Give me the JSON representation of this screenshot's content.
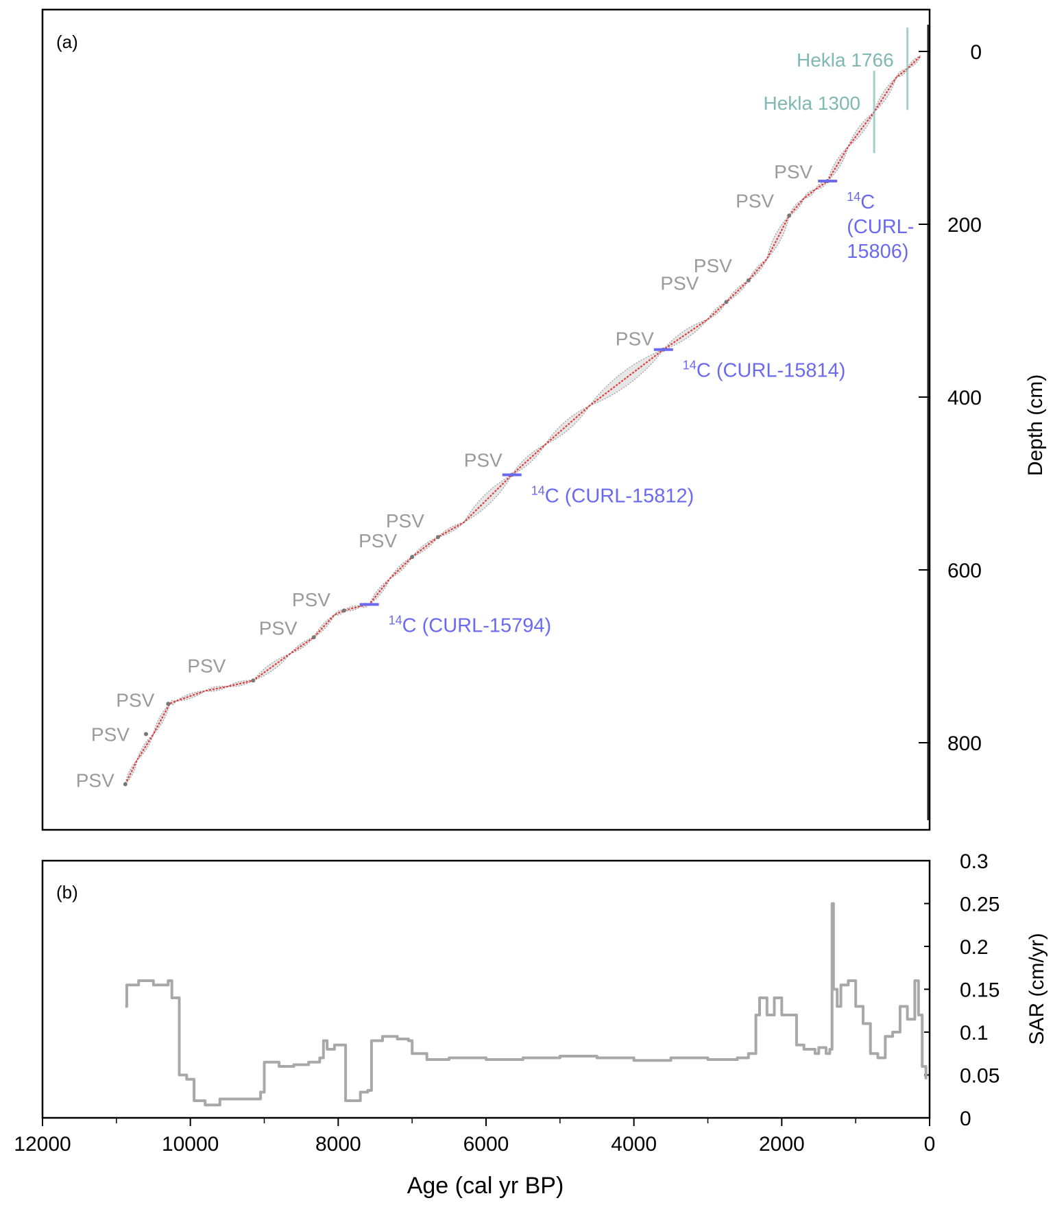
{
  "colors": {
    "frame": "#000000",
    "age_model_line": "#e03a3a",
    "uncertainty_envelope": "#c8c8c8",
    "psv_label": "#9a9a9a",
    "c14_label": "#6a6af0",
    "tephra_label": "#7fb8b2",
    "sar_line": "#a8a8a8"
  },
  "chart_data": [
    {
      "panel_label": "(a)",
      "type": "line",
      "xlabel": "",
      "ylabel": "Depth (cm)",
      "xlim": [
        12000,
        0
      ],
      "ylim": [
        0,
        900
      ],
      "y_inverted": true,
      "y_axis_side": "right",
      "yticks": [
        "0",
        "200",
        "400",
        "600",
        "800"
      ],
      "series": [
        {
          "x": [
            10880,
            10720,
            10500,
            10280,
            10200,
            9800,
            9500,
            9150,
            8650,
            8330,
            8050,
            7920,
            7700,
            7580,
            7300,
            7000,
            6650,
            6300,
            5650,
            5200,
            4600,
            3600,
            3000,
            2750,
            2450,
            2200,
            1900,
            1700,
            1550,
            1380,
            1100,
            750,
            450,
            300,
            120
          ],
          "y": [
            848,
            820,
            790,
            755,
            752,
            740,
            735,
            728,
            697,
            678,
            652,
            647,
            642,
            640,
            610,
            585,
            562,
            545,
            490,
            455,
            410,
            345,
            310,
            290,
            265,
            240,
            190,
            170,
            160,
            150,
            110,
            70,
            30,
            20,
            5
          ]
        }
      ],
      "annotations": {
        "psv": [
          {
            "text": "PSV",
            "age": 10880,
            "depth": 848
          },
          {
            "text": "PSV",
            "age": 10600,
            "depth": 790
          },
          {
            "text": "PSV",
            "age": 10300,
            "depth": 755
          },
          {
            "text": "PSV",
            "age": 9150,
            "depth": 728
          },
          {
            "text": "PSV",
            "age": 8330,
            "depth": 678
          },
          {
            "text": "PSV",
            "age": 7920,
            "depth": 647
          },
          {
            "text": "PSV",
            "age": 7000,
            "depth": 585
          },
          {
            "text": "PSV",
            "age": 6650,
            "depth": 562
          },
          {
            "text": "PSV",
            "age": 5650,
            "depth": 490
          },
          {
            "text": "PSV",
            "age": 3600,
            "depth": 345
          },
          {
            "text": "PSV",
            "age": 2750,
            "depth": 290
          },
          {
            "text": "PSV",
            "age": 2450,
            "depth": 265
          },
          {
            "text": "PSV",
            "age": 1900,
            "depth": 190
          },
          {
            "text": "PSV",
            "age": 1380,
            "depth": 150
          }
        ],
        "c14": [
          {
            "sup": "14",
            "text": "C (CURL-15794)",
            "age": 7580,
            "depth": 640
          },
          {
            "sup": "14",
            "text": "C (CURL-15812)",
            "age": 5650,
            "depth": 490
          },
          {
            "sup": "14",
            "text": "C (CURL-15814)",
            "age": 3600,
            "depth": 345
          },
          {
            "sup": "14",
            "lines": [
              "C",
              "(CURL-",
              "15806)"
            ],
            "age": 1380,
            "depth": 150
          }
        ],
        "tephra": [
          {
            "text": "Hekla 1766",
            "age": 300,
            "depth": 20
          },
          {
            "text": "Hekla 1300",
            "age": 750,
            "depth": 70
          }
        ]
      }
    },
    {
      "panel_label": "(b)",
      "type": "line",
      "xlabel": "Age (cal yr BP)",
      "ylabel": "SAR (cm/yr)",
      "xlim": [
        12000,
        0
      ],
      "ylim": [
        0,
        0.3
      ],
      "y_axis_side": "right",
      "xticks": [
        "12000",
        "10000",
        "8000",
        "6000",
        "4000",
        "2000",
        "0"
      ],
      "yticks": [
        "0",
        "0.05",
        "0.1",
        "0.15",
        "0.2",
        "0.25",
        "0.3"
      ],
      "series": [
        {
          "x": [
            10880,
            10860,
            10700,
            10500,
            10300,
            10250,
            10150,
            10050,
            9950,
            9800,
            9600,
            9400,
            9200,
            9050,
            9000,
            8800,
            8600,
            8400,
            8250,
            8200,
            8150,
            8050,
            7950,
            7900,
            7750,
            7700,
            7600,
            7550,
            7400,
            7200,
            7050,
            7000,
            6800,
            6500,
            6000,
            5500,
            5000,
            4500,
            4000,
            3500,
            3000,
            2600,
            2450,
            2350,
            2300,
            2200,
            2100,
            2000,
            1900,
            1800,
            1700,
            1550,
            1500,
            1400,
            1350,
            1320,
            1300,
            1250,
            1200,
            1100,
            1000,
            900,
            800,
            700,
            600,
            500,
            400,
            300,
            200,
            150,
            100,
            50
          ],
          "y": [
            0.13,
            0.155,
            0.16,
            0.155,
            0.16,
            0.14,
            0.05,
            0.045,
            0.02,
            0.015,
            0.022,
            0.022,
            0.022,
            0.03,
            0.065,
            0.06,
            0.062,
            0.065,
            0.07,
            0.09,
            0.08,
            0.085,
            0.085,
            0.02,
            0.02,
            0.03,
            0.032,
            0.09,
            0.095,
            0.092,
            0.09,
            0.075,
            0.068,
            0.07,
            0.068,
            0.07,
            0.072,
            0.07,
            0.067,
            0.07,
            0.068,
            0.07,
            0.075,
            0.12,
            0.14,
            0.12,
            0.14,
            0.12,
            0.12,
            0.085,
            0.08,
            0.075,
            0.082,
            0.075,
            0.08,
            0.25,
            0.15,
            0.13,
            0.155,
            0.16,
            0.13,
            0.11,
            0.075,
            0.07,
            0.095,
            0.1,
            0.13,
            0.115,
            0.16,
            0.12,
            0.06,
            0.045
          ]
        }
      ]
    }
  ]
}
